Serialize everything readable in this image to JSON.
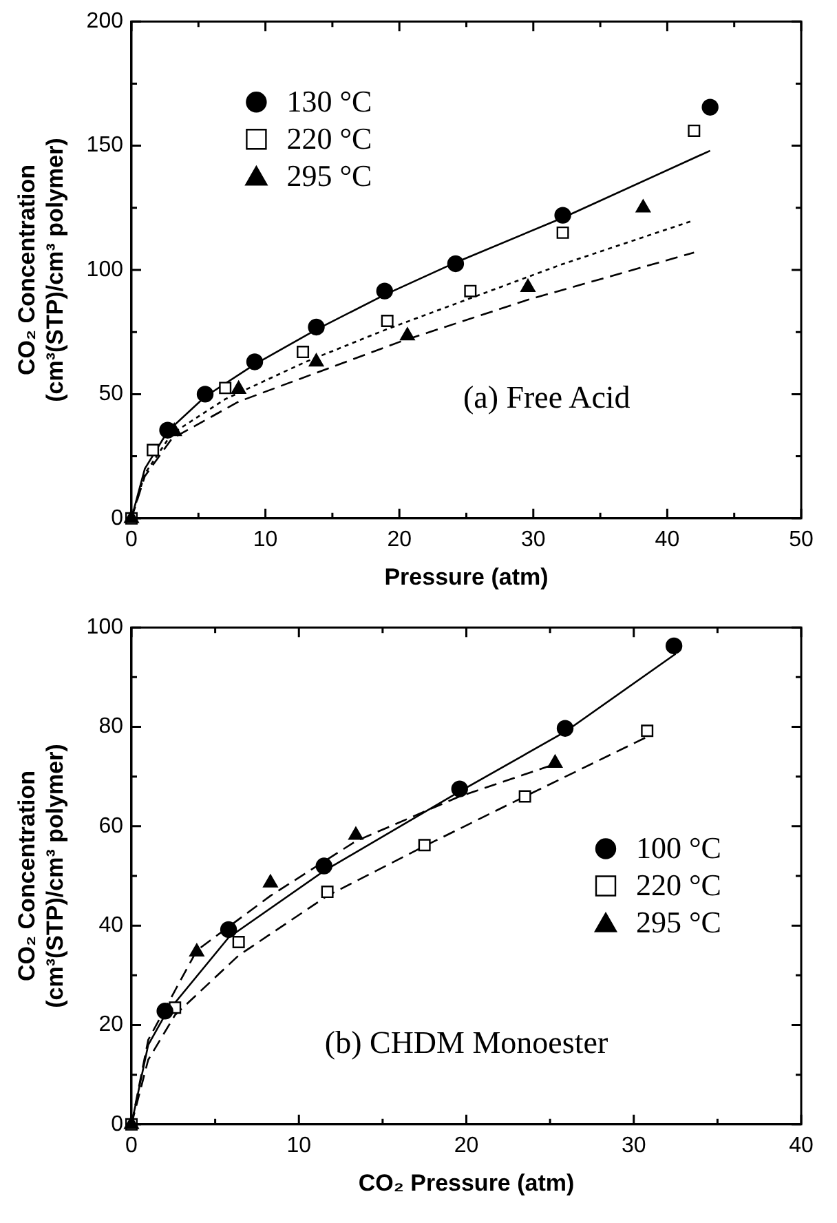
{
  "chart_data": [
    {
      "type": "scatter",
      "xlabel": "Pressure (atm)",
      "ylabel": "CO₂ Concentration\n(cm³(STP)/cm³ polymer)",
      "xlim": [
        0,
        50
      ],
      "ylim": [
        0,
        200
      ],
      "xticks": [
        0,
        {
          "value": 5,
          "label": null
        },
        10,
        {
          "value": 15,
          "label": null
        },
        20,
        {
          "value": 25,
          "label": null
        },
        30,
        {
          "value": 35,
          "label": null
        },
        40,
        {
          "value": 45,
          "label": null
        },
        50
      ],
      "yticks": [
        0,
        {
          "value": 25,
          "label": null
        },
        50,
        {
          "value": 75,
          "label": null
        },
        100,
        {
          "value": 125,
          "label": null
        },
        150,
        {
          "value": 175,
          "label": null
        },
        200
      ],
      "grid": false,
      "legend": "top left",
      "annotations": [
        "(a) Free Acid"
      ],
      "series": [
        {
          "name": "130 °C",
          "marker": "circle",
          "color": "#000000",
          "x": [
            2.7,
            5.5,
            9.2,
            13.8,
            18.9,
            24.2,
            32.2,
            43.2
          ],
          "values": [
            35.5,
            50,
            63,
            77,
            91.5,
            102.5,
            122,
            165.5
          ]
        },
        {
          "name": "220 °C",
          "marker": "square",
          "color": "#000000",
          "x": [
            0,
            1.6,
            7,
            12.8,
            19.1,
            25.3,
            32.2,
            42
          ],
          "values": [
            0,
            27.5,
            52.5,
            67,
            79.5,
            91.5,
            115,
            156
          ]
        },
        {
          "name": "295 °C",
          "marker": "triangle",
          "color": "#000000",
          "x": [
            0,
            3.2,
            8,
            13.8,
            20.6,
            29.6,
            38.2
          ],
          "values": [
            0,
            35,
            52,
            63,
            73.5,
            93,
            125
          ]
        },
        {
          "type": "line",
          "line_style": "solid",
          "color": "#000000",
          "x": [
            0,
            1,
            2.7,
            5.5,
            9.2,
            13.8,
            18.9,
            24.2,
            32.2,
            43.2
          ],
          "values": [
            0,
            20,
            35,
            49,
            62,
            76,
            90,
            103,
            121,
            148
          ]
        },
        {
          "type": "line",
          "line_style": "dotted",
          "color": "#000000",
          "x": [
            0,
            1,
            3,
            7,
            13,
            19,
            25,
            32,
            42
          ],
          "values": [
            0,
            18,
            34,
            48,
            63,
            76,
            88,
            102,
            120
          ]
        },
        {
          "type": "line",
          "line_style": "dashed",
          "color": "#000000",
          "x": [
            0,
            1,
            3,
            8,
            14,
            20,
            29.6,
            42
          ],
          "values": [
            0,
            17,
            32,
            47,
            59,
            71,
            88,
            107
          ]
        }
      ]
    },
    {
      "type": "scatter",
      "xlabel": "CO₂ Pressure (atm)",
      "ylabel": "CO₂ Concentration\n(cm³(STP)/cm³ polymer)",
      "xlim": [
        0,
        40
      ],
      "ylim": [
        0,
        100
      ],
      "xticks": [
        0,
        {
          "value": 5,
          "label": null
        },
        10,
        {
          "value": 15,
          "label": null
        },
        20,
        {
          "value": 25,
          "label": null
        },
        30,
        {
          "value": 35,
          "label": null
        },
        40
      ],
      "yticks": [
        0,
        {
          "value": 10,
          "label": null
        },
        20,
        {
          "value": 30,
          "label": null
        },
        40,
        {
          "value": 50,
          "label": null
        },
        60,
        {
          "value": 70,
          "label": null
        },
        80,
        {
          "value": 90,
          "label": null
        },
        100
      ],
      "grid": false,
      "legend": "right",
      "annotations": [
        "(b) CHDM Monoester"
      ],
      "series": [
        {
          "name": "100 °C",
          "marker": "circle",
          "color": "#000000",
          "x": [
            2,
            5.8,
            11.5,
            19.6,
            25.9,
            32.4
          ],
          "values": [
            22.8,
            39.2,
            52,
            67.5,
            79.7,
            96.3
          ]
        },
        {
          "name": "220 °C",
          "marker": "square",
          "color": "#000000",
          "x": [
            0,
            2.6,
            6.4,
            11.7,
            17.5,
            23.5,
            30.8
          ],
          "values": [
            0,
            23.5,
            36.7,
            46.8,
            56.2,
            66,
            79.2
          ]
        },
        {
          "name": "295 °C",
          "marker": "triangle",
          "color": "#000000",
          "x": [
            0,
            3.9,
            8.3,
            13.4,
            25.3
          ],
          "values": [
            0,
            34.7,
            48.6,
            58.2,
            72.7
          ]
        },
        {
          "type": "line",
          "line_style": "solid",
          "color": "#000000",
          "x": [
            0,
            1,
            2,
            5.8,
            11.5,
            19.6,
            25.9,
            32.5
          ],
          "values": [
            0,
            16,
            22,
            37.6,
            51,
            67,
            79,
            94.7
          ]
        },
        {
          "type": "line",
          "line_style": "dashed",
          "color": "#000000",
          "x": [
            0,
            1,
            2.6,
            6.4,
            11.7,
            17.5,
            23.5,
            30.8
          ],
          "values": [
            0,
            13,
            22,
            34,
            46,
            56,
            66,
            78
          ]
        },
        {
          "type": "line",
          "line_style": "dashed",
          "color": "#000000",
          "x": [
            0,
            1,
            3.9,
            8.3,
            13.4,
            19.6,
            25.3
          ],
          "values": [
            0,
            17,
            35,
            46,
            57,
            66,
            72.5
          ]
        }
      ]
    }
  ]
}
